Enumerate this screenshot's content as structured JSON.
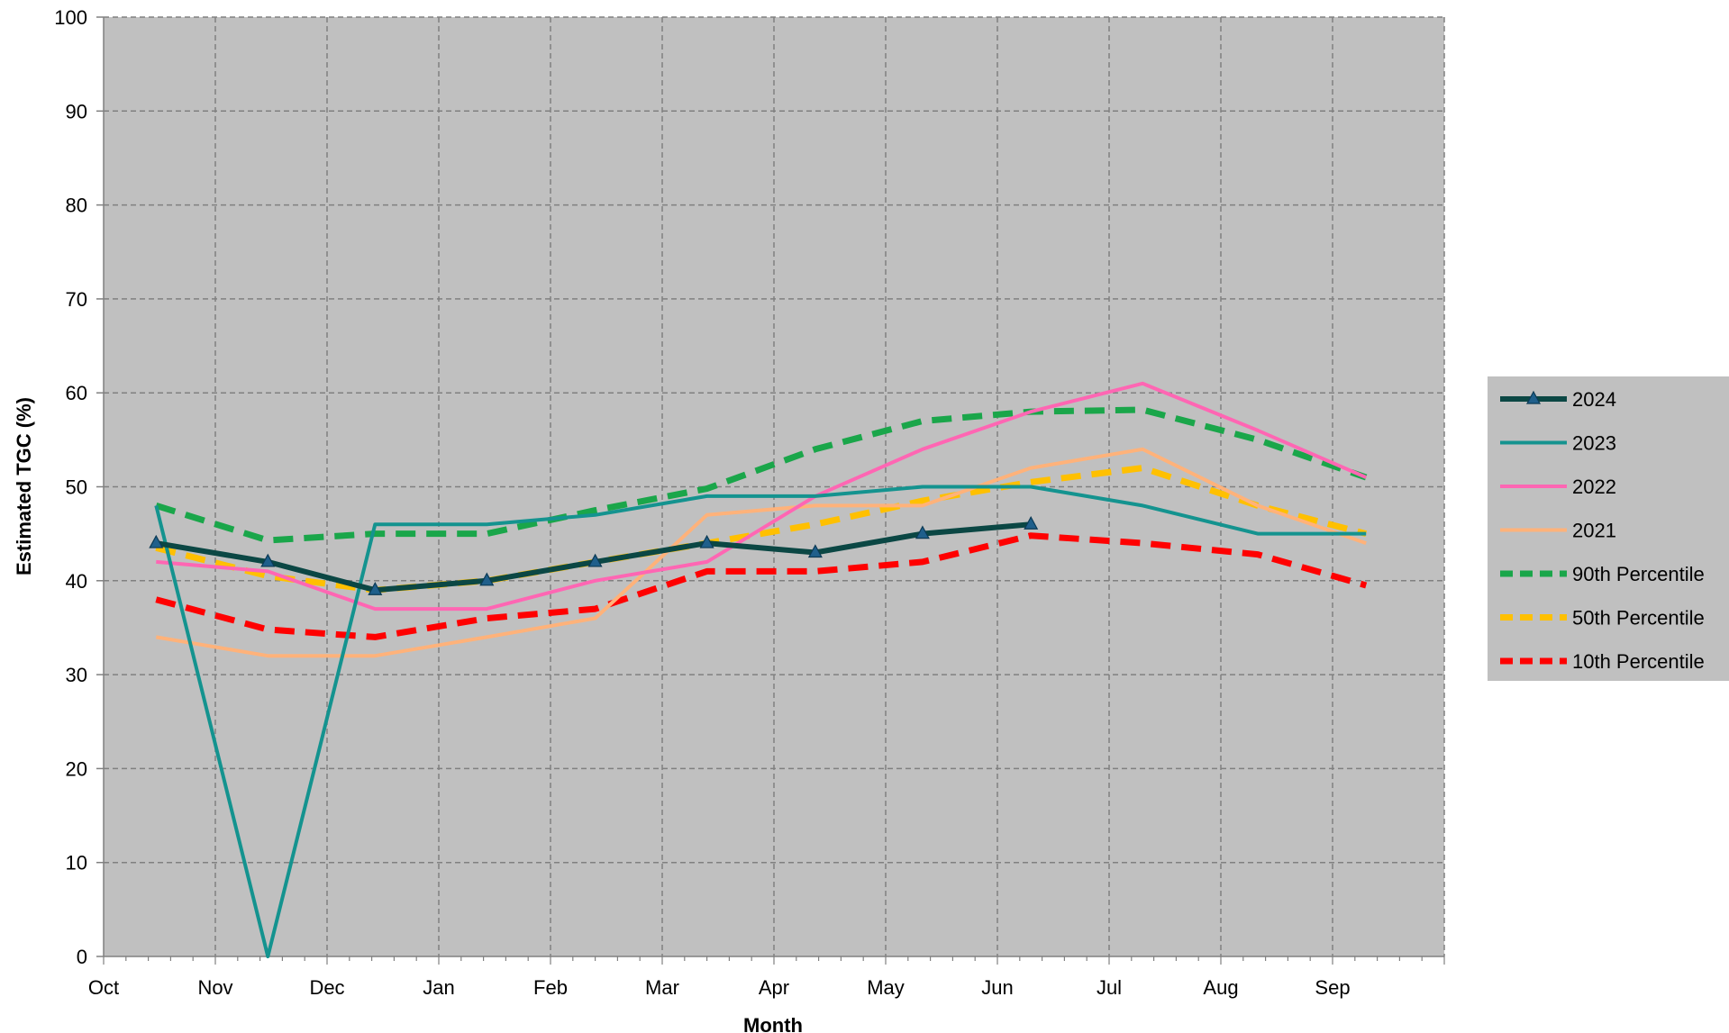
{
  "chart_data": {
    "type": "line",
    "xlabel": "Month",
    "ylabel": "Estimated TGC (%)",
    "ylim": [
      0,
      100
    ],
    "yticks": [
      0,
      10,
      20,
      30,
      40,
      50,
      60,
      70,
      80,
      90,
      100
    ],
    "xlim": [
      0,
      12
    ],
    "xticks": [
      {
        "label": "Oct",
        "pos": 0
      },
      {
        "label": "Nov",
        "pos": 1
      },
      {
        "label": "Dec",
        "pos": 2
      },
      {
        "label": "Jan",
        "pos": 3
      },
      {
        "label": "Feb",
        "pos": 4
      },
      {
        "label": "Mar",
        "pos": 5
      },
      {
        "label": "Apr",
        "pos": 6
      },
      {
        "label": "May",
        "pos": 7
      },
      {
        "label": "Jun",
        "pos": 8
      },
      {
        "label": "Jul",
        "pos": 9
      },
      {
        "label": "Aug",
        "pos": 10
      },
      {
        "label": "Sep",
        "pos": 11
      }
    ],
    "grid": true,
    "legend_position": "right",
    "plot_background": "#c0c0c0",
    "series": [
      {
        "name": "2024",
        "color": "#0b4744",
        "style": "solid",
        "marker": "triangle",
        "x": [
          0.47,
          1.47,
          2.43,
          3.43,
          4.4,
          5.4,
          6.37,
          7.33,
          8.3
        ],
        "y": [
          44,
          42,
          39,
          40,
          42,
          44,
          43,
          45,
          46
        ]
      },
      {
        "name": "2023",
        "color": "#14938f",
        "style": "solid",
        "x": [
          0.47,
          1.47,
          2.43,
          3.43,
          4.4,
          5.4,
          6.37,
          7.33,
          8.3,
          9.3,
          10.33,
          11.3
        ],
        "y": [
          48,
          0,
          46,
          46,
          47,
          49,
          49,
          50,
          50,
          48,
          45,
          45
        ]
      },
      {
        "name": "2022",
        "color": "#ff66b3",
        "style": "solid",
        "x": [
          0.47,
          1.47,
          2.43,
          3.43,
          4.4,
          5.4,
          6.37,
          7.33,
          8.3,
          9.3,
          10.33,
          11.3
        ],
        "y": [
          42,
          41,
          37,
          37,
          40,
          42,
          49,
          54,
          58,
          61,
          56,
          51
        ]
      },
      {
        "name": "2021",
        "color": "#ffb27a",
        "style": "solid",
        "x": [
          0.47,
          1.47,
          2.43,
          3.43,
          4.4,
          5.4,
          6.37,
          7.33,
          8.3,
          9.3,
          10.33,
          11.3
        ],
        "y": [
          34,
          32,
          32,
          34,
          36,
          47,
          48,
          48,
          52,
          54,
          48,
          44
        ]
      },
      {
        "name": "90th Percentile",
        "color": "#1aa64a",
        "style": "dashed",
        "x": [
          0.47,
          1.47,
          2.43,
          3.43,
          4.4,
          5.4,
          6.37,
          7.33,
          8.3,
          9.3,
          10.33,
          11.3
        ],
        "y": [
          48,
          44.3,
          45,
          45,
          47.5,
          49.8,
          54,
          57,
          58,
          58.2,
          55,
          51
        ]
      },
      {
        "name": "50th Percentile",
        "color": "#ffc000",
        "style": "dashed",
        "x": [
          0.47,
          1.47,
          2.43,
          3.43,
          4.4,
          5.4,
          6.37,
          7.33,
          8.3,
          9.3,
          10.33,
          11.3
        ],
        "y": [
          43.5,
          40.5,
          39,
          40,
          42,
          44,
          46,
          48.5,
          50.5,
          52,
          48,
          45
        ]
      },
      {
        "name": "10th Percentile",
        "color": "#ff0000",
        "style": "dashed",
        "x": [
          0.47,
          1.47,
          2.43,
          3.43,
          4.4,
          5.4,
          6.37,
          7.33,
          8.3,
          9.3,
          10.33,
          11.3
        ],
        "y": [
          38,
          34.8,
          34,
          36,
          37,
          41,
          41,
          42,
          44.8,
          44,
          42.8,
          39.5
        ]
      }
    ]
  }
}
